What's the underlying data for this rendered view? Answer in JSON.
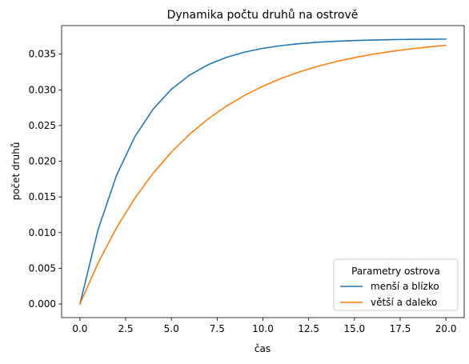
{
  "chart_data": {
    "type": "line",
    "title": "Dynamika počtu druhů na ostrově",
    "xlabel": "čas",
    "ylabel": "počet druhů",
    "xlim": [
      -1.0,
      21.0
    ],
    "ylim": [
      -0.0019,
      0.039
    ],
    "xticks": [
      "0.0",
      "2.5",
      "5.0",
      "7.5",
      "10.0",
      "12.5",
      "15.0",
      "17.5",
      "20.0"
    ],
    "yticks": [
      "0.000",
      "0.005",
      "0.010",
      "0.015",
      "0.020",
      "0.025",
      "0.030",
      "0.035"
    ],
    "legend": {
      "title": "Parametry ostrova",
      "placement": "lower-right"
    },
    "x": [
      0,
      1,
      2,
      3,
      4,
      5,
      6,
      7,
      8,
      9,
      10,
      11,
      12,
      13,
      14,
      15,
      16,
      17,
      18,
      19,
      20
    ],
    "series": [
      {
        "name": "menší a blízko",
        "color": "#1f77b4",
        "values": [
          0.0,
          0.01049,
          0.01802,
          0.02343,
          0.0273,
          0.03009,
          0.03208,
          0.03352,
          0.03455,
          0.03529,
          0.03582,
          0.0362,
          0.03647,
          0.03667,
          0.03681,
          0.03691,
          0.03698,
          0.03703,
          0.03707,
          0.03709,
          0.03711
        ]
      },
      {
        "name": "větší a daleko",
        "color": "#ff7f0e",
        "values": [
          0.0,
          0.00579,
          0.01068,
          0.01482,
          0.01832,
          0.02129,
          0.0238,
          0.02592,
          0.02771,
          0.02923,
          0.03051,
          0.0316,
          0.03252,
          0.0333,
          0.03396,
          0.03451,
          0.03498,
          0.03538,
          0.03571,
          0.036,
          0.03624
        ]
      }
    ],
    "grid": false
  }
}
